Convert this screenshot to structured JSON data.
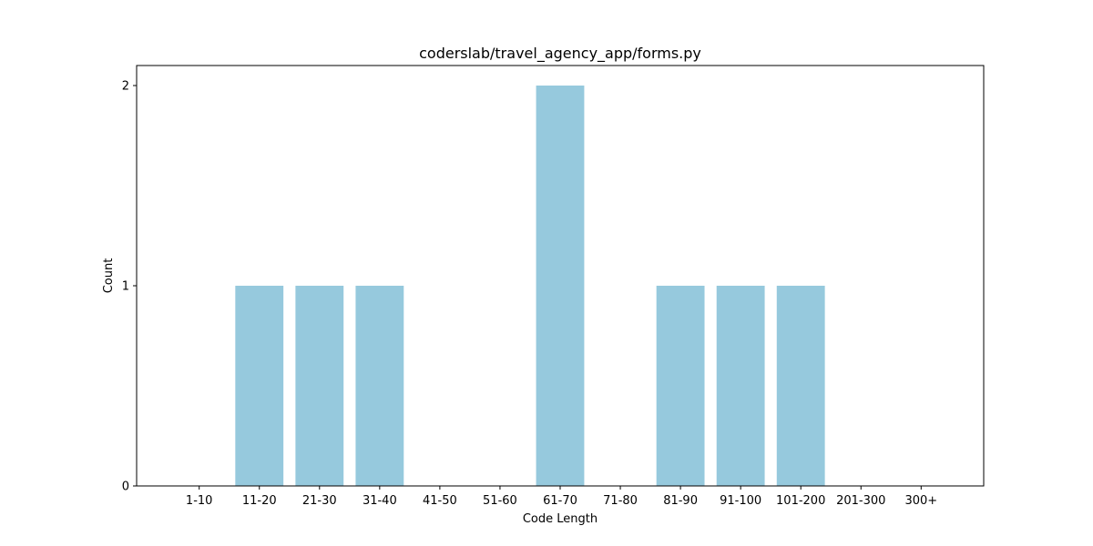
{
  "chart_data": {
    "type": "bar",
    "title": "coderslab/travel_agency_app/forms.py",
    "xlabel": "Code Length",
    "ylabel": "Count",
    "categories": [
      "1-10",
      "11-20",
      "21-30",
      "31-40",
      "41-50",
      "51-60",
      "61-70",
      "71-80",
      "81-90",
      "91-100",
      "101-200",
      "201-300",
      "300+"
    ],
    "values": [
      0,
      1,
      1,
      1,
      0,
      0,
      2,
      0,
      1,
      1,
      1,
      0,
      0
    ],
    "yticks": [
      "0",
      "1",
      "2"
    ],
    "ylim": [
      0,
      2.1
    ],
    "grid": false,
    "legend": "none",
    "bar_color": "#96c9dd"
  }
}
